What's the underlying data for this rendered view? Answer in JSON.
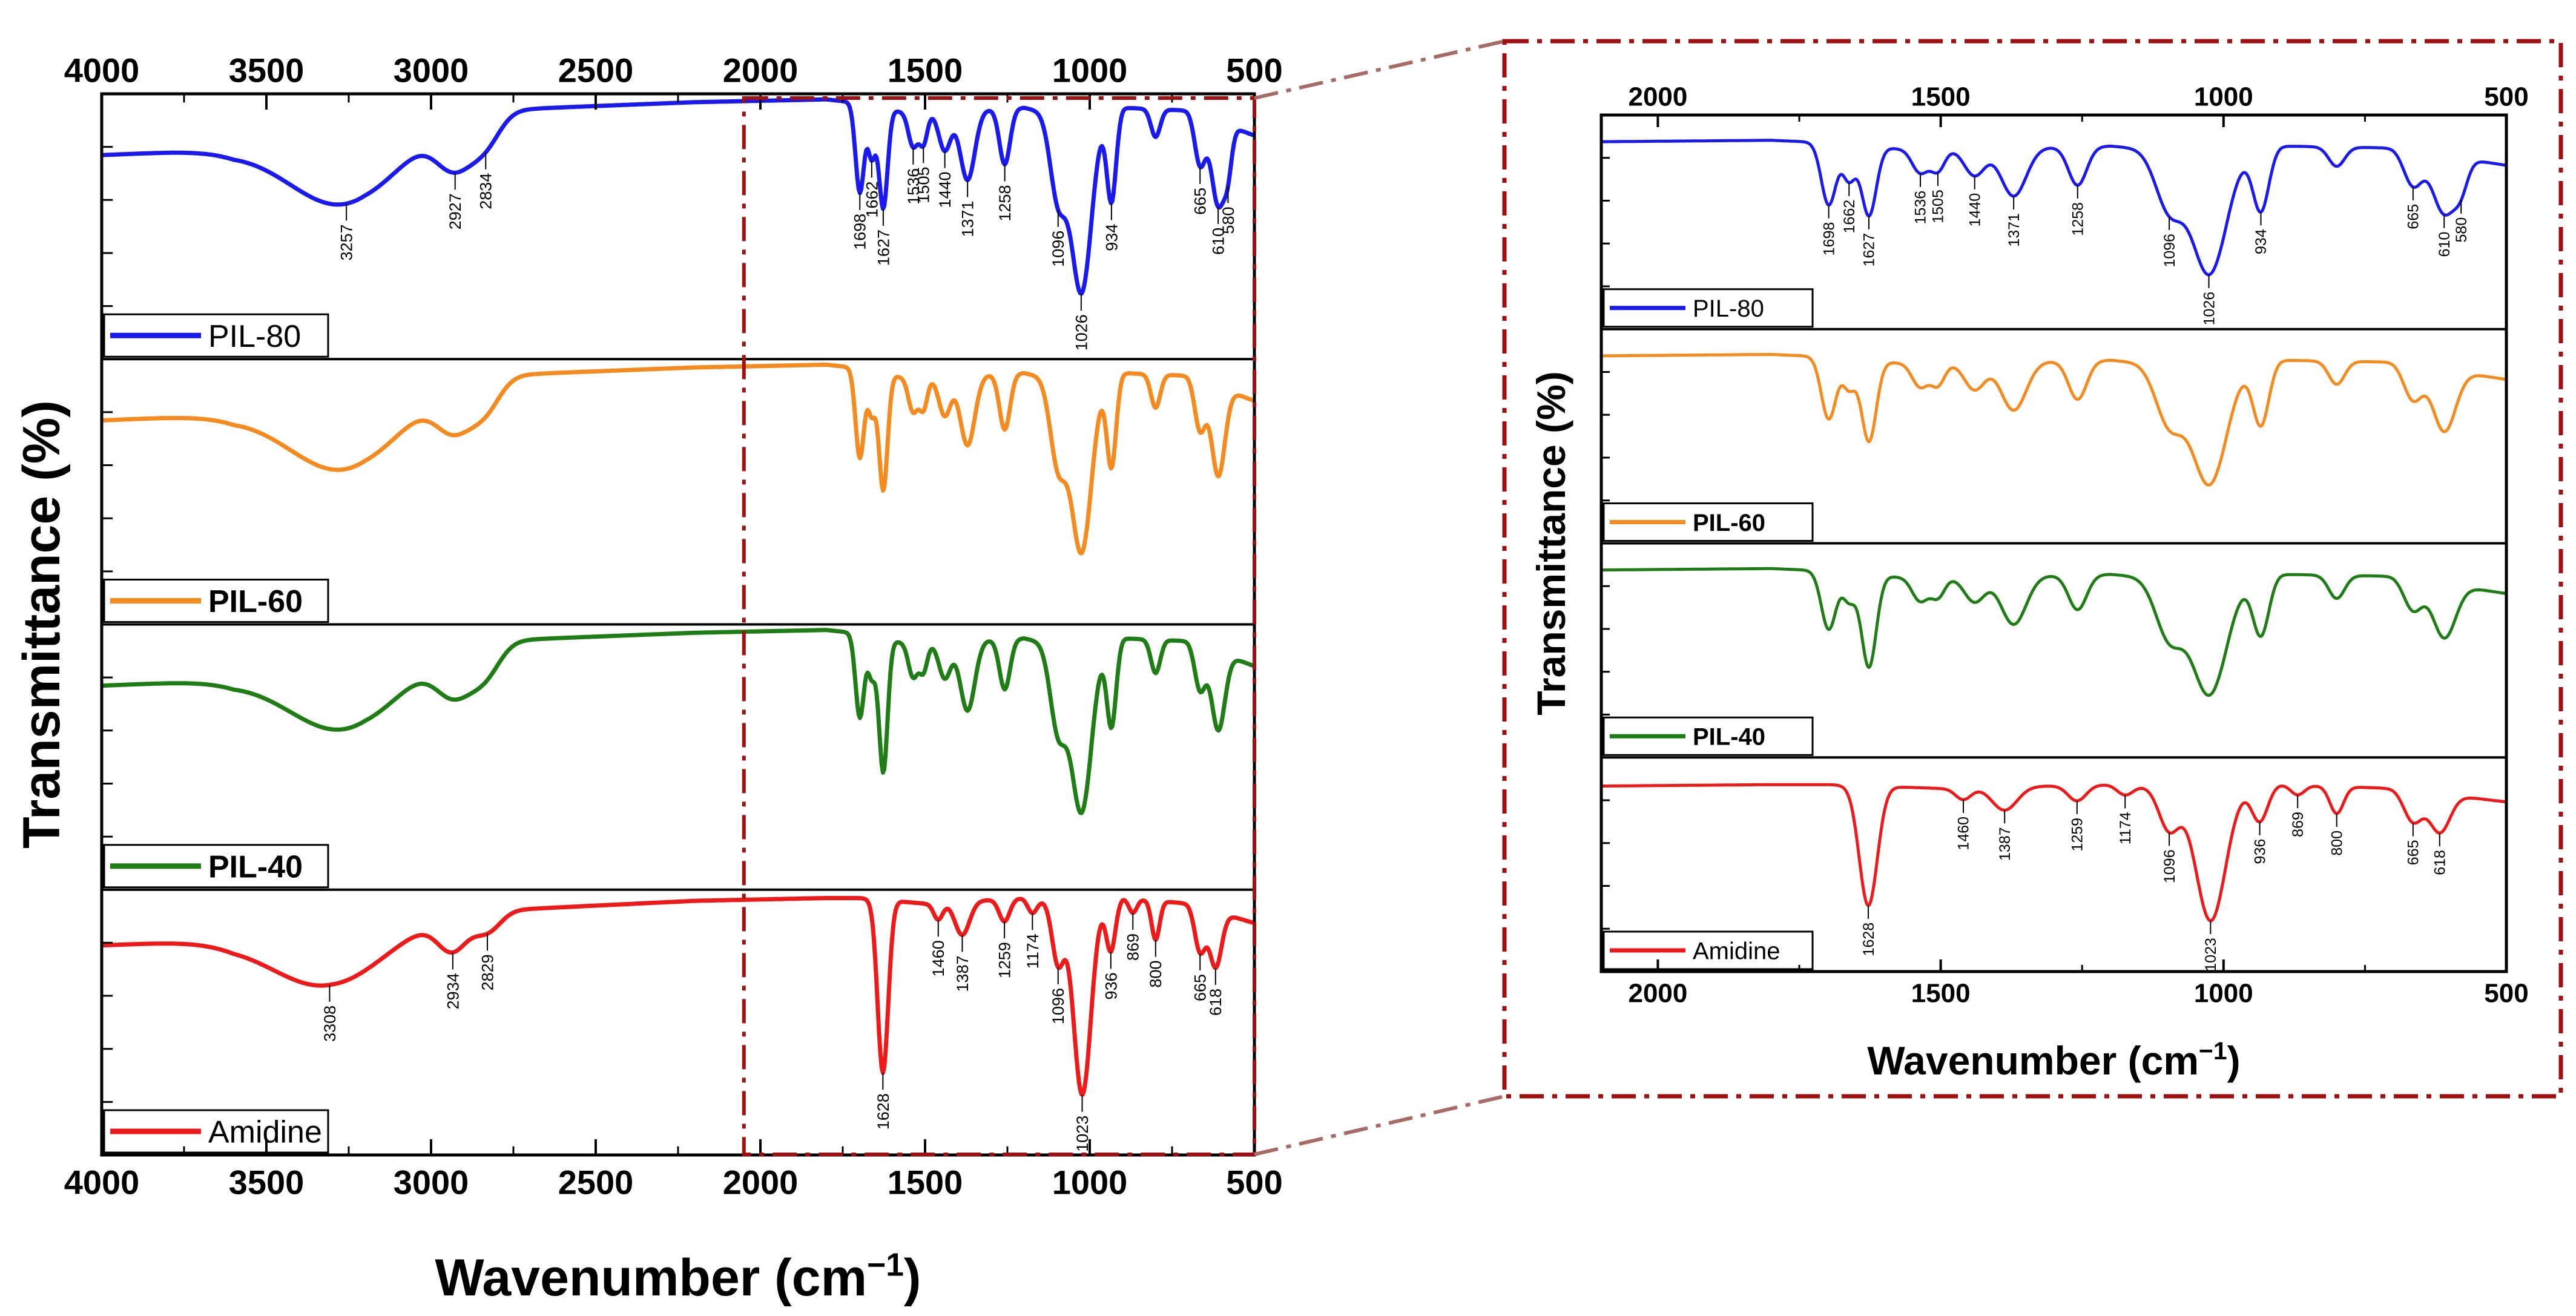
{
  "chart_data": {
    "type": "line",
    "title": "",
    "colors": {
      "PIL-80": "#1a1aee",
      "PIL-60": "#f58a1f",
      "PIL-40": "#1e7d14",
      "Amidine": "#ee1a1a",
      "zoom_box": "#a01010"
    },
    "main": {
      "xlabel_prefix": "Wavenumber (cm",
      "xlabel_sup": "−1",
      "xlabel_suffix": ")",
      "ylabel": "Transmittance (%)",
      "xlim": [
        4000,
        500
      ],
      "xticks": [
        "4000",
        "3500",
        "3000",
        "2500",
        "2000",
        "1500",
        "1000",
        "500"
      ],
      "zoom_region": [
        2050,
        500
      ]
    },
    "inset": {
      "xlabel_prefix": "Wavenumber (cm",
      "xlabel_sup": "−1",
      "xlabel_suffix": ")",
      "ylabel": "Transmittance (%)",
      "xlim": [
        2100,
        500
      ],
      "xticks": [
        "2000",
        "1500",
        "1000",
        "500"
      ]
    },
    "series": [
      {
        "name": "PIL-80",
        "legend": "PIL-80",
        "bold": false,
        "baseline": [
          [
            4000,
            0.78
          ],
          [
            3600,
            0.8
          ],
          [
            3200,
            0.9
          ],
          [
            2850,
            0.94
          ],
          [
            2200,
            0.97
          ],
          [
            1800,
            0.98
          ],
          [
            1720,
            0.97
          ],
          [
            1550,
            0.93
          ],
          [
            1200,
            0.95
          ],
          [
            1000,
            0.9
          ],
          [
            900,
            0.95
          ],
          [
            700,
            0.94
          ],
          [
            500,
            0.85
          ]
        ],
        "peaks": [
          {
            "x": 3257,
            "d": 0.28,
            "w": 170
          },
          {
            "x": 2927,
            "d": 0.16,
            "w": 55
          },
          {
            "x": 2834,
            "d": 0.1,
            "w": 45
          },
          {
            "x": 1698,
            "d": 0.32,
            "w": 13
          },
          {
            "x": 1662,
            "d": 0.18,
            "w": 11
          },
          {
            "x": 1627,
            "d": 0.36,
            "w": 13
          },
          {
            "x": 1536,
            "d": 0.12,
            "w": 14
          },
          {
            "x": 1505,
            "d": 0.11,
            "w": 12
          },
          {
            "x": 1440,
            "d": 0.14,
            "w": 18
          },
          {
            "x": 1371,
            "d": 0.25,
            "w": 22
          },
          {
            "x": 1258,
            "d": 0.2,
            "w": 16
          },
          {
            "x": 1096,
            "d": 0.3,
            "w": 24
          },
          {
            "x": 1026,
            "d": 0.62,
            "w": 30
          },
          {
            "x": 934,
            "d": 0.32,
            "w": 14
          },
          {
            "x": 800,
            "d": 0.1,
            "w": 14
          },
          {
            "x": 665,
            "d": 0.18,
            "w": 16
          },
          {
            "x": 610,
            "d": 0.3,
            "w": 20
          },
          {
            "x": 580,
            "d": 0.12,
            "w": 12
          }
        ],
        "main_labels": [
          "3257",
          "2927",
          "2834",
          "1698",
          "1662",
          "1627",
          "1536",
          "1505",
          "1440",
          "1371",
          "1258",
          "1096",
          "1026",
          "934",
          "665",
          "610",
          "580"
        ],
        "inset_labels": [
          "1698",
          "1662",
          "1627",
          "1536",
          "1505",
          "1440",
          "1371",
          "1258",
          "1096",
          "1026",
          "934",
          "665",
          "610",
          "580"
        ]
      },
      {
        "name": "PIL-60",
        "legend": "PIL-60",
        "bold": true,
        "baseline": [
          [
            4000,
            0.78
          ],
          [
            3600,
            0.8
          ],
          [
            3200,
            0.9
          ],
          [
            2850,
            0.94
          ],
          [
            2200,
            0.97
          ],
          [
            1800,
            0.98
          ],
          [
            1720,
            0.97
          ],
          [
            1550,
            0.93
          ],
          [
            1200,
            0.95
          ],
          [
            1000,
            0.9
          ],
          [
            900,
            0.95
          ],
          [
            700,
            0.94
          ],
          [
            500,
            0.85
          ]
        ],
        "peaks": [
          {
            "x": 3257,
            "d": 0.28,
            "w": 170
          },
          {
            "x": 2927,
            "d": 0.15,
            "w": 55
          },
          {
            "x": 2834,
            "d": 0.1,
            "w": 45
          },
          {
            "x": 1698,
            "d": 0.32,
            "w": 13
          },
          {
            "x": 1662,
            "d": 0.15,
            "w": 11
          },
          {
            "x": 1627,
            "d": 0.42,
            "w": 13
          },
          {
            "x": 1536,
            "d": 0.12,
            "w": 14
          },
          {
            "x": 1505,
            "d": 0.11,
            "w": 12
          },
          {
            "x": 1440,
            "d": 0.14,
            "w": 18
          },
          {
            "x": 1371,
            "d": 0.25,
            "w": 22
          },
          {
            "x": 1258,
            "d": 0.2,
            "w": 16
          },
          {
            "x": 1096,
            "d": 0.3,
            "w": 24
          },
          {
            "x": 1026,
            "d": 0.6,
            "w": 30
          },
          {
            "x": 934,
            "d": 0.32,
            "w": 14
          },
          {
            "x": 800,
            "d": 0.12,
            "w": 14
          },
          {
            "x": 665,
            "d": 0.18,
            "w": 16
          },
          {
            "x": 610,
            "d": 0.32,
            "w": 20
          }
        ],
        "main_labels": [],
        "inset_labels": []
      },
      {
        "name": "PIL-40",
        "legend": "PIL-40",
        "bold": true,
        "baseline": [
          [
            4000,
            0.78
          ],
          [
            3600,
            0.8
          ],
          [
            3200,
            0.9
          ],
          [
            2850,
            0.94
          ],
          [
            2200,
            0.97
          ],
          [
            1800,
            0.98
          ],
          [
            1720,
            0.97
          ],
          [
            1550,
            0.93
          ],
          [
            1200,
            0.95
          ],
          [
            1000,
            0.9
          ],
          [
            900,
            0.95
          ],
          [
            700,
            0.94
          ],
          [
            500,
            0.85
          ]
        ],
        "peaks": [
          {
            "x": 3257,
            "d": 0.26,
            "w": 170
          },
          {
            "x": 2927,
            "d": 0.15,
            "w": 55
          },
          {
            "x": 2834,
            "d": 0.1,
            "w": 45
          },
          {
            "x": 1698,
            "d": 0.3,
            "w": 13
          },
          {
            "x": 1662,
            "d": 0.14,
            "w": 11
          },
          {
            "x": 1627,
            "d": 0.48,
            "w": 13
          },
          {
            "x": 1536,
            "d": 0.12,
            "w": 14
          },
          {
            "x": 1505,
            "d": 0.1,
            "w": 12
          },
          {
            "x": 1440,
            "d": 0.13,
            "w": 18
          },
          {
            "x": 1371,
            "d": 0.25,
            "w": 22
          },
          {
            "x": 1258,
            "d": 0.18,
            "w": 16
          },
          {
            "x": 1096,
            "d": 0.3,
            "w": 24
          },
          {
            "x": 1026,
            "d": 0.58,
            "w": 30
          },
          {
            "x": 934,
            "d": 0.3,
            "w": 14
          },
          {
            "x": 800,
            "d": 0.12,
            "w": 14
          },
          {
            "x": 665,
            "d": 0.16,
            "w": 16
          },
          {
            "x": 610,
            "d": 0.28,
            "w": 20
          }
        ],
        "main_labels": [],
        "inset_labels": []
      },
      {
        "name": "Amidine",
        "legend": "Amidine",
        "bold": false,
        "baseline": [
          [
            4000,
            0.8
          ],
          [
            3600,
            0.82
          ],
          [
            3300,
            0.88
          ],
          [
            2900,
            0.92
          ],
          [
            2200,
            0.96
          ],
          [
            1800,
            0.97
          ],
          [
            1700,
            0.97
          ],
          [
            1500,
            0.95
          ],
          [
            1200,
            0.97
          ],
          [
            1000,
            0.94
          ],
          [
            900,
            0.97
          ],
          [
            700,
            0.95
          ],
          [
            500,
            0.88
          ]
        ],
        "peaks": [
          {
            "x": 3308,
            "d": 0.22,
            "w": 170
          },
          {
            "x": 2934,
            "d": 0.12,
            "w": 45
          },
          {
            "x": 2829,
            "d": 0.07,
            "w": 40
          },
          {
            "x": 1628,
            "d": 0.62,
            "w": 16
          },
          {
            "x": 1460,
            "d": 0.06,
            "w": 14
          },
          {
            "x": 1387,
            "d": 0.12,
            "w": 22
          },
          {
            "x": 1259,
            "d": 0.08,
            "w": 16
          },
          {
            "x": 1174,
            "d": 0.05,
            "w": 14
          },
          {
            "x": 1096,
            "d": 0.22,
            "w": 18
          },
          {
            "x": 1023,
            "d": 0.68,
            "w": 26
          },
          {
            "x": 936,
            "d": 0.18,
            "w": 14
          },
          {
            "x": 869,
            "d": 0.05,
            "w": 12
          },
          {
            "x": 800,
            "d": 0.14,
            "w": 12
          },
          {
            "x": 665,
            "d": 0.16,
            "w": 16
          },
          {
            "x": 618,
            "d": 0.2,
            "w": 18
          }
        ],
        "main_labels": [
          "3308",
          "2934",
          "2829",
          "1628",
          "1460",
          "1387",
          "1259",
          "1174",
          "1096",
          "1023",
          "936",
          "869",
          "800",
          "665",
          "618"
        ],
        "inset_labels": [
          "1628",
          "1460",
          "1387",
          "1259",
          "1174",
          "1096",
          "1023",
          "936",
          "869",
          "800",
          "665",
          "618"
        ]
      }
    ]
  }
}
